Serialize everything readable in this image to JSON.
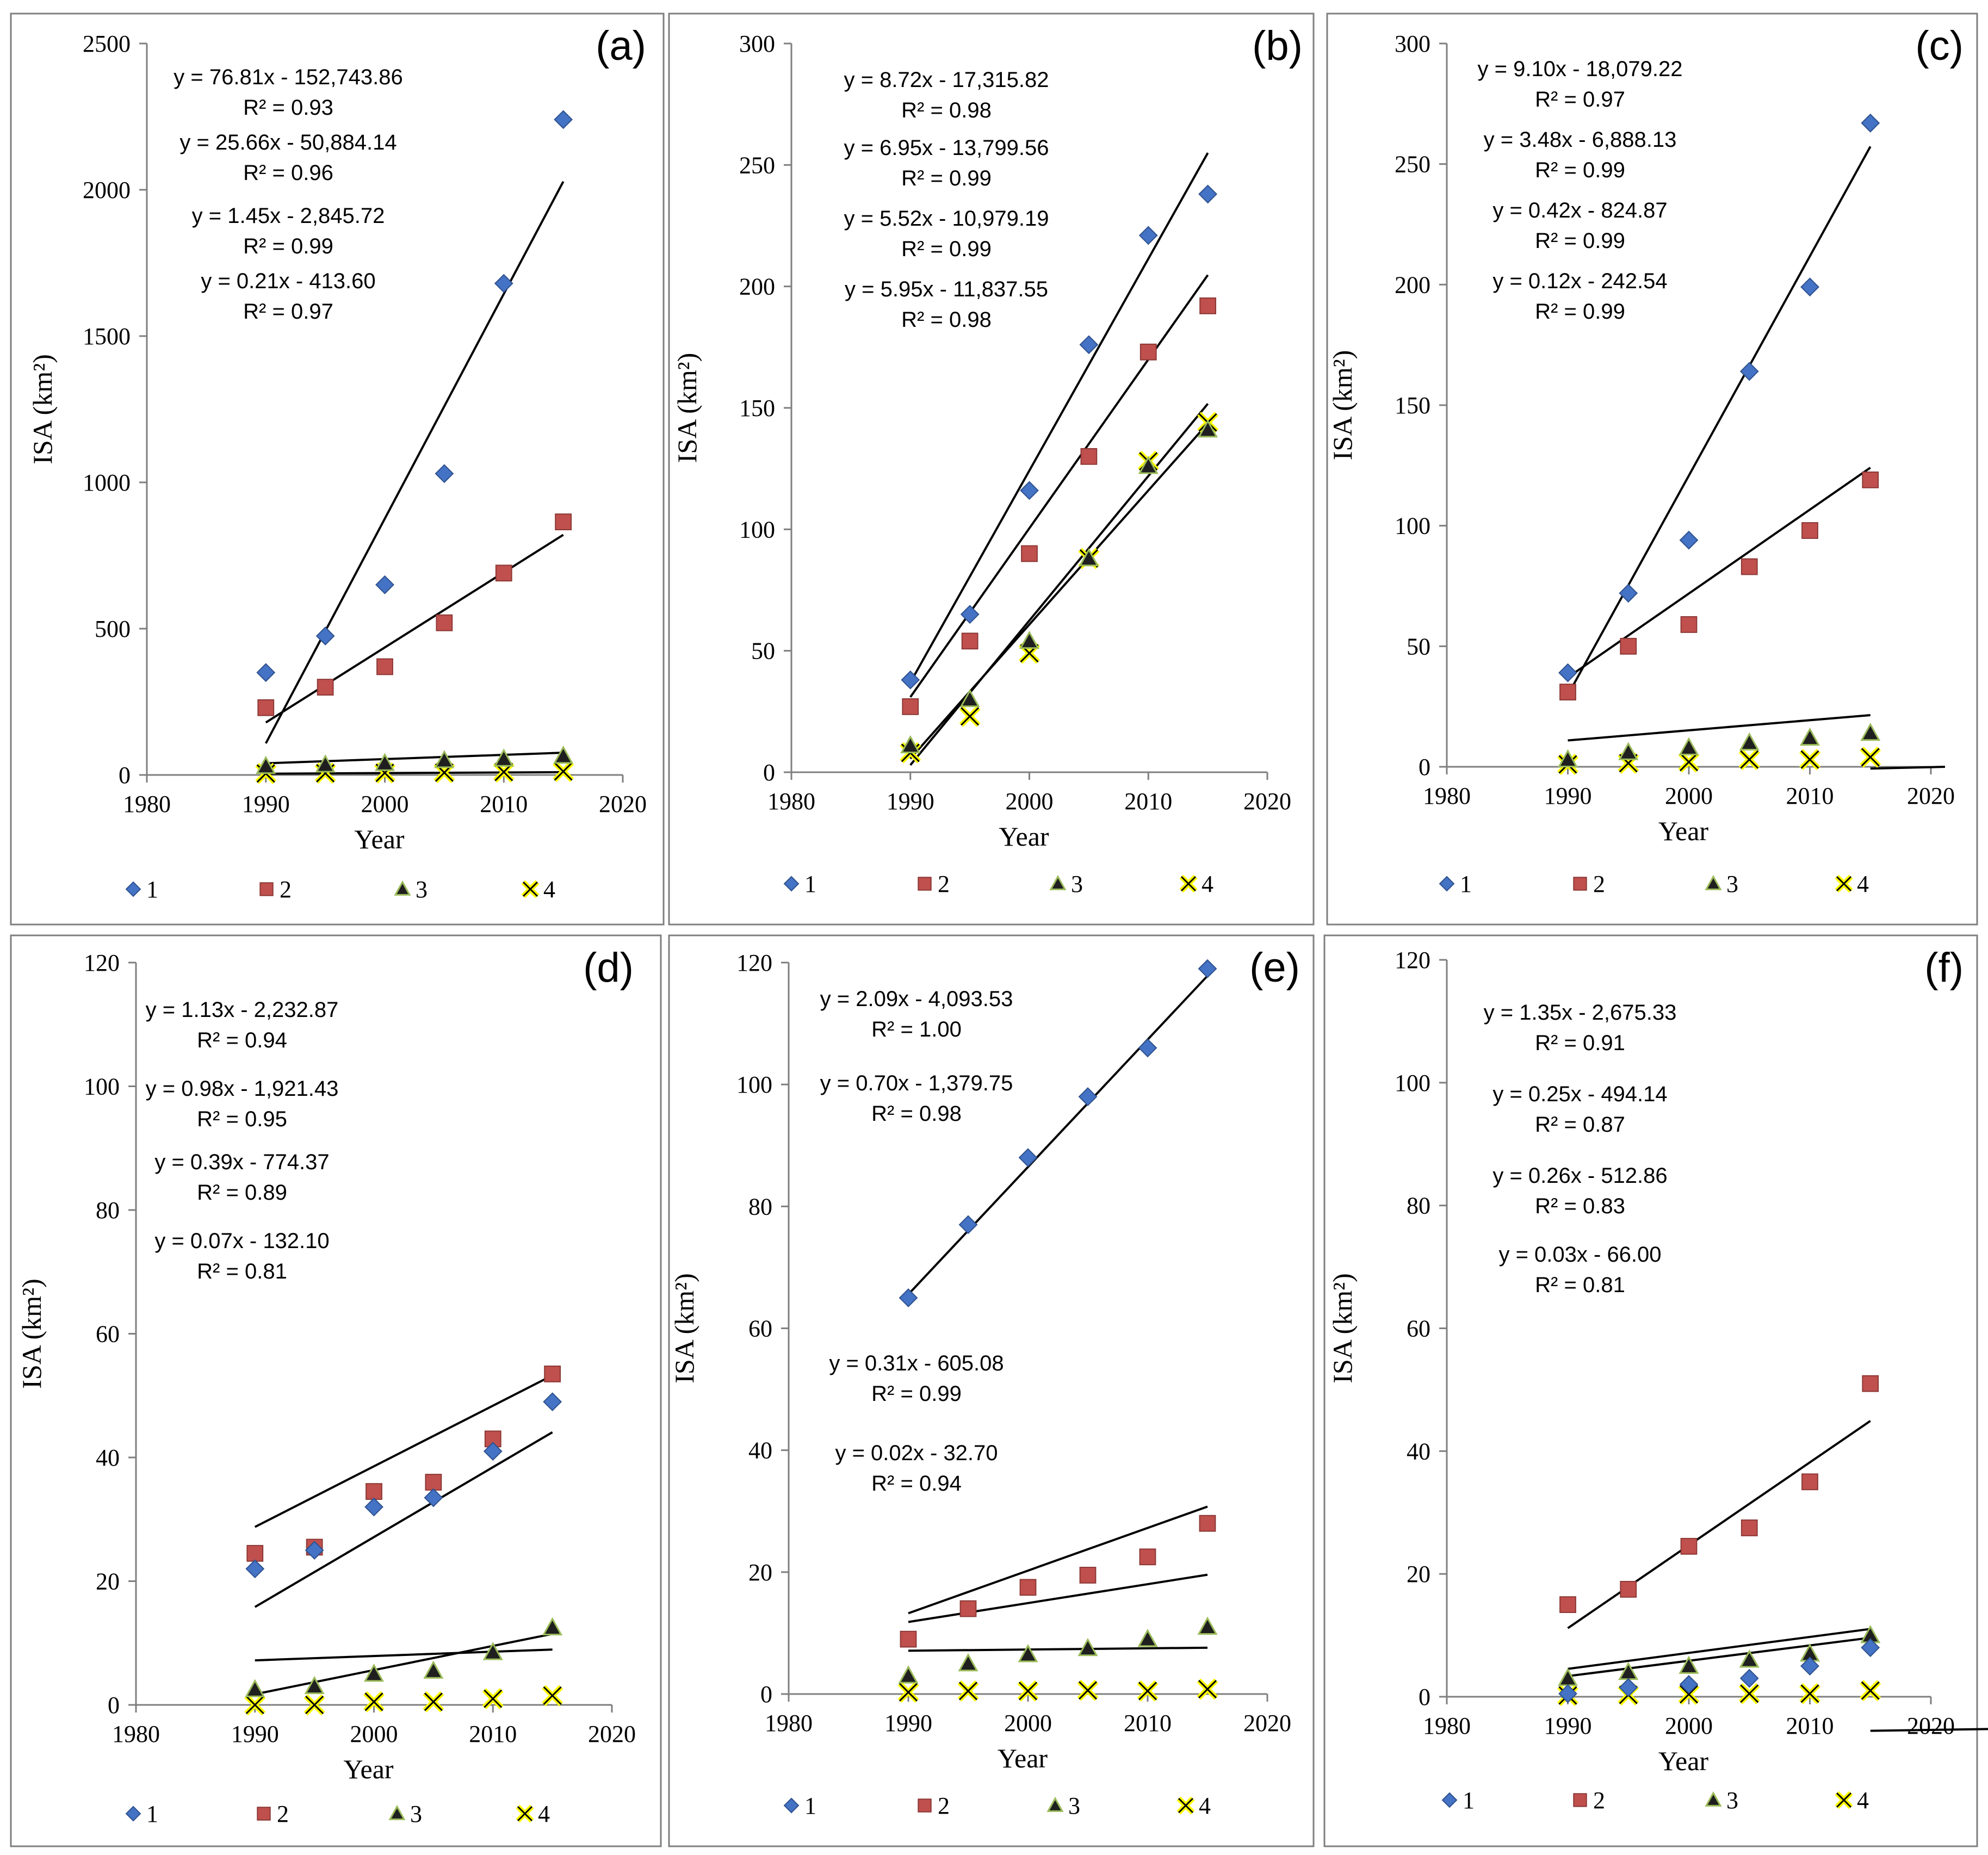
{
  "figure": {
    "marker_colors": {
      "1": "#4472C4",
      "2": "#C0504D",
      "3": "#1F1F1F",
      "4": "#FFFF00"
    }
  },
  "chart_data": [
    {
      "type": "scatter",
      "label": "(a)",
      "xlabel": "Year",
      "ylabel": "ISA (km²)",
      "xlim": [
        1980,
        2020
      ],
      "ylim": [
        0,
        2500
      ],
      "xticks": [
        1980,
        1990,
        2000,
        2010,
        2020
      ],
      "yticks": [
        0,
        500,
        1000,
        1500,
        2000,
        2500
      ],
      "x": [
        1990,
        1995,
        2000,
        2005,
        2010,
        2015
      ],
      "series": [
        {
          "name": "1",
          "values": [
            350,
            475,
            650,
            1030,
            1680,
            2240
          ],
          "trend": [
            76.81,
            -152743.86
          ],
          "equation": "y = 76.81x - 152,743.86",
          "r2": "R² = 0.93"
        },
        {
          "name": "2",
          "values": [
            230,
            300,
            370,
            520,
            690,
            865
          ],
          "trend": [
            25.66,
            -50884.14
          ],
          "equation": "y = 25.66x - 50,884.14",
          "r2": "R² = 0.96"
        },
        {
          "name": "3",
          "values": [
            30,
            35,
            40,
            50,
            55,
            65
          ],
          "trend": [
            1.45,
            -2845.72
          ],
          "equation": "y = 1.45x - 2,845.72",
          "r2": "R² = 0.99"
        },
        {
          "name": "4",
          "values": [
            5,
            6,
            7,
            8,
            10,
            12
          ],
          "trend": [
            0.21,
            -413.6
          ],
          "equation": "y = 0.21x - 413.60",
          "r2": "R² = 0.97"
        }
      ],
      "legend": [
        "1",
        "2",
        "3",
        "4"
      ]
    },
    {
      "type": "scatter",
      "label": "(b)",
      "xlabel": "Year",
      "ylabel": "ISA (km²)",
      "xlim": [
        1980,
        2020
      ],
      "ylim": [
        0,
        300
      ],
      "xticks": [
        1980,
        1990,
        2000,
        2010,
        2020
      ],
      "yticks": [
        0,
        50,
        100,
        150,
        200,
        250,
        300
      ],
      "x": [
        1990,
        1995,
        2000,
        2005,
        2010,
        2015
      ],
      "series": [
        {
          "name": "1",
          "values": [
            38,
            65,
            116,
            176,
            221,
            238
          ],
          "trend": [
            8.72,
            -17315.82
          ],
          "equation": "y = 8.72x - 17,315.82",
          "r2": "R² = 0.98"
        },
        {
          "name": "2",
          "values": [
            27,
            54,
            90,
            130,
            173,
            192
          ],
          "trend": [
            6.95,
            -13799.56
          ],
          "equation": "y = 6.95x - 13,799.56",
          "r2": "R² = 0.99"
        },
        {
          "name": "3",
          "values": [
            11,
            30,
            54,
            88,
            126,
            141
          ],
          "trend": [
            5.52,
            -10979.19
          ],
          "equation": "y = 5.52x - 10,979.19",
          "r2": "R² = 0.99"
        },
        {
          "name": "4",
          "values": [
            8,
            23,
            49,
            88,
            128,
            144
          ],
          "trend": [
            5.95,
            -11837.55
          ],
          "equation": "y = 5.95x - 11,837.55",
          "r2": "R² = 0.98"
        }
      ],
      "legend": [
        "1",
        "2",
        "3",
        "4"
      ]
    },
    {
      "type": "scatter",
      "label": "(c)",
      "xlabel": "Year",
      "ylabel": "ISA (km²)",
      "xlim": [
        1980,
        2020
      ],
      "ylim": [
        0,
        300
      ],
      "xticks": [
        1980,
        1990,
        2000,
        2010,
        2020
      ],
      "yticks": [
        0,
        50,
        100,
        150,
        200,
        250,
        300
      ],
      "x": [
        1990,
        1995,
        2000,
        2005,
        2010,
        2015
      ],
      "series": [
        {
          "name": "1",
          "values": [
            39,
            72,
            94,
            164,
            199,
            267
          ],
          "trend": [
            9.1,
            -18079.22
          ],
          "equation": "y = 9.10x - 18,079.22",
          "r2": "R² = 0.97"
        },
        {
          "name": "2",
          "values": [
            31,
            50,
            59,
            83,
            98,
            119
          ],
          "trend": [
            3.48,
            -6888.13
          ],
          "equation": "y = 3.48x - 6,888.13",
          "r2": "R² = 0.99"
        },
        {
          "name": "3",
          "values": [
            3,
            6,
            8,
            10,
            12,
            14
          ],
          "trend": [
            0.42,
            -824.87
          ],
          "equation": "y = 0.42x - 824.87",
          "r2": "R² = 0.99"
        },
        {
          "name": "4",
          "values": [
            1,
            1.5,
            2,
            3,
            3,
            4
          ],
          "trend": [
            0.12,
            -242.54
          ],
          "equation": "y = 0.12x - 242.54",
          "r2": "R² = 0.99"
        }
      ],
      "legend": [
        "1",
        "2",
        "3",
        "4"
      ]
    },
    {
      "type": "scatter",
      "label": "(d)",
      "xlabel": "Year",
      "ylabel": "ISA (km²)",
      "xlim": [
        1980,
        2020
      ],
      "ylim": [
        0,
        120
      ],
      "xticks": [
        1980,
        1990,
        2000,
        2010,
        2020
      ],
      "yticks": [
        0,
        20,
        40,
        60,
        80,
        100,
        120
      ],
      "x": [
        1990,
        1995,
        2000,
        2005,
        2010,
        2015
      ],
      "series": [
        {
          "name": "1",
          "values": [
            22,
            25,
            32,
            33.5,
            41,
            49
          ],
          "trend": [
            1.13,
            -2232.87
          ],
          "equation": "y = 1.13x - 2,232.87",
          "r2": "R² = 0.94"
        },
        {
          "name": "2",
          "values": [
            24.5,
            25.5,
            34.5,
            36,
            43,
            53.5
          ],
          "trend": [
            0.98,
            -1921.43
          ],
          "equation": "y = 0.98x - 1,921.43",
          "r2": "R² = 0.95"
        },
        {
          "name": "3",
          "values": [
            2.5,
            3,
            5,
            5.5,
            8.5,
            12.5
          ],
          "trend": [
            0.39,
            -774.37
          ],
          "equation": "y = 0.39x - 774.37",
          "r2": "R² = 0.89"
        },
        {
          "name": "4",
          "values": [
            0,
            0,
            0.5,
            0.5,
            1,
            1.5
          ],
          "trend": [
            0.07,
            -132.1
          ],
          "equation": "y = 0.07x - 132.10",
          "r2": "R² = 0.81"
        }
      ],
      "legend": [
        "1",
        "2",
        "3",
        "4"
      ]
    },
    {
      "type": "scatter",
      "label": "(e)",
      "xlabel": "Year",
      "ylabel": "ISA (km²)",
      "xlim": [
        1980,
        2020
      ],
      "ylim": [
        0,
        120
      ],
      "xticks": [
        1980,
        1990,
        2000,
        2010,
        2020
      ],
      "yticks": [
        0,
        20,
        40,
        60,
        80,
        100,
        120
      ],
      "x": [
        1990,
        1995,
        2000,
        2005,
        2010,
        2015
      ],
      "series": [
        {
          "name": "1",
          "values": [
            65,
            77,
            88,
            98,
            106,
            119
          ],
          "trend": [
            2.09,
            -4093.53
          ],
          "equation": "y = 2.09x - 4,093.53",
          "r2": "R² = 1.00"
        },
        {
          "name": "2",
          "values": [
            9,
            14,
            17.5,
            19.5,
            22.5,
            28
          ],
          "trend": [
            0.7,
            -1379.75
          ],
          "equation": "y = 0.70x - 1,379.75",
          "r2": "R² = 0.98"
        },
        {
          "name": "3",
          "values": [
            3,
            5,
            6.5,
            7.5,
            9,
            11
          ],
          "trend": [
            0.31,
            -605.08
          ],
          "equation": "y = 0.31x - 605.08",
          "r2": "R² = 0.99"
        },
        {
          "name": "4",
          "values": [
            0.3,
            0.5,
            0.5,
            0.6,
            0.5,
            0.8
          ],
          "trend": [
            0.02,
            -32.7
          ],
          "equation": "y = 0.02x - 32.70",
          "r2": "R² = 0.94"
        }
      ],
      "legend": [
        "1",
        "2",
        "3",
        "4"
      ]
    },
    {
      "type": "scatter",
      "label": "(f)",
      "xlabel": "Year",
      "ylabel": "ISA (km²)",
      "xlim": [
        1980,
        2020
      ],
      "ylim": [
        0,
        120
      ],
      "xticks": [
        1980,
        1990,
        2000,
        2010,
        2020
      ],
      "yticks": [
        0,
        20,
        40,
        60,
        80,
        100,
        120
      ],
      "x": [
        1990,
        1995,
        2000,
        2005,
        2010,
        2015
      ],
      "series": [
        {
          "name": "1",
          "values": [
            0.5,
            1.5,
            2,
            3,
            5,
            8
          ],
          "trend": [
            0.26,
            -512.86
          ],
          "equation": "y = 0.26x - 512.86",
          "r2": "R² = 0.83"
        },
        {
          "name": "2",
          "values": [
            15,
            17.5,
            24.5,
            27.5,
            35,
            51
          ],
          "trend": [
            1.35,
            -2675.33
          ],
          "equation": "y = 1.35x - 2,675.33",
          "r2": "R² = 0.91"
        },
        {
          "name": "3",
          "values": [
            3,
            4,
            5,
            6,
            7,
            10
          ],
          "trend": [
            0.25,
            -494.14
          ],
          "equation": "y = 0.25x - 494.14",
          "r2": "R² = 0.87"
        },
        {
          "name": "4",
          "values": [
            0.2,
            0.3,
            0.4,
            0.5,
            0.5,
            1
          ],
          "trend": [
            0.03,
            -66.0
          ],
          "equation": "y = 0.03x - 66.00",
          "r2": "R² = 0.81"
        }
      ],
      "legend": [
        "1",
        "2",
        "3",
        "4"
      ]
    }
  ]
}
